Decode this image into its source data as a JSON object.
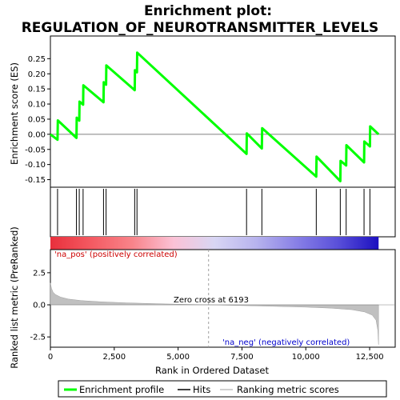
{
  "chart_data": {
    "type": "line",
    "title_line1": "Enrichment plot:",
    "title_line2": "REGULATION_OF_NEUROTRANSMITTER_LEVELS",
    "es_panel": {
      "ylabel": "Enrichment score (ES)",
      "ylim": [
        -0.175,
        0.325
      ],
      "yticks": [
        -0.15,
        -0.1,
        -0.05,
        0.0,
        0.05,
        0.1,
        0.15,
        0.2,
        0.25
      ],
      "ytick_labels": [
        "-0.15",
        "-0.10",
        "-0.05",
        "0.00",
        "0.05",
        "0.10",
        "0.15",
        "0.20",
        "0.25"
      ],
      "line_color": "#00ff00",
      "points": [
        {
          "x": 0,
          "y": 0.0
        },
        {
          "x": 280,
          "y": -0.018
        },
        {
          "x": 290,
          "y": 0.046
        },
        {
          "x": 1020,
          "y": -0.012
        },
        {
          "x": 1030,
          "y": 0.055
        },
        {
          "x": 1130,
          "y": 0.045
        },
        {
          "x": 1140,
          "y": 0.108
        },
        {
          "x": 1280,
          "y": 0.098
        },
        {
          "x": 1290,
          "y": 0.162
        },
        {
          "x": 2080,
          "y": 0.106
        },
        {
          "x": 2090,
          "y": 0.172
        },
        {
          "x": 2180,
          "y": 0.164
        },
        {
          "x": 2190,
          "y": 0.228
        },
        {
          "x": 3300,
          "y": 0.146
        },
        {
          "x": 3310,
          "y": 0.212
        },
        {
          "x": 3390,
          "y": 0.205
        },
        {
          "x": 3400,
          "y": 0.27
        },
        {
          "x": 7680,
          "y": -0.065
        },
        {
          "x": 7690,
          "y": 0.003
        },
        {
          "x": 8280,
          "y": -0.047
        },
        {
          "x": 8290,
          "y": 0.02
        },
        {
          "x": 10410,
          "y": -0.14
        },
        {
          "x": 10420,
          "y": -0.074
        },
        {
          "x": 11350,
          "y": -0.155
        },
        {
          "x": 11360,
          "y": -0.088
        },
        {
          "x": 11580,
          "y": -0.103
        },
        {
          "x": 11590,
          "y": -0.036
        },
        {
          "x": 12280,
          "y": -0.093
        },
        {
          "x": 12290,
          "y": -0.024
        },
        {
          "x": 12510,
          "y": -0.04
        },
        {
          "x": 12520,
          "y": 0.026
        },
        {
          "x": 12850,
          "y": 0.0
        }
      ]
    },
    "hits": [
      280,
      1020,
      1130,
      1280,
      2080,
      2180,
      3300,
      3390,
      7680,
      8280,
      10410,
      11350,
      11580,
      12280,
      12510
    ],
    "rank_panel": {
      "ylabel": "Ranked list metric (PreRanked)",
      "ylim": [
        -3.3,
        4.3
      ],
      "yticks": [
        -2.5,
        0.0,
        2.5
      ],
      "ytick_labels": [
        "-2.5",
        "0.0",
        "2.5"
      ],
      "zero_cross_label": "Zero cross at 6193",
      "zero_cross": 6193,
      "pos_label": "'na_pos' (positively correlated)",
      "neg_label": "'na_neg' (negatively correlated)",
      "pos_color": "#cc0000",
      "neg_color": "#0000cc",
      "curve": [
        {
          "x": 0,
          "y": 1.7
        },
        {
          "x": 40,
          "y": 1.3
        },
        {
          "x": 100,
          "y": 1.0
        },
        {
          "x": 200,
          "y": 0.8
        },
        {
          "x": 400,
          "y": 0.6
        },
        {
          "x": 700,
          "y": 0.45
        },
        {
          "x": 1200,
          "y": 0.33
        },
        {
          "x": 2000,
          "y": 0.23
        },
        {
          "x": 3000,
          "y": 0.15
        },
        {
          "x": 4500,
          "y": 0.07
        },
        {
          "x": 6193,
          "y": 0.0
        },
        {
          "x": 8000,
          "y": -0.08
        },
        {
          "x": 10000,
          "y": -0.18
        },
        {
          "x": 11000,
          "y": -0.26
        },
        {
          "x": 11800,
          "y": -0.38
        },
        {
          "x": 12300,
          "y": -0.55
        },
        {
          "x": 12600,
          "y": -0.8
        },
        {
          "x": 12750,
          "y": -1.2
        },
        {
          "x": 12820,
          "y": -2.0
        },
        {
          "x": 12850,
          "y": -3.1
        }
      ]
    },
    "colorbar_stops": [
      "#e8303c",
      "#f45a62",
      "#f8848a",
      "#fbc2d6",
      "#d8d6f4",
      "#b8b4ee",
      "#8880e6",
      "#5a50da",
      "#1c10c0"
    ],
    "xaxis": {
      "label": "Rank in Ordered Dataset",
      "xlim": [
        0,
        13500
      ],
      "ticks": [
        0,
        2500,
        5000,
        7500,
        10000,
        12500
      ],
      "tick_labels": [
        "0",
        "2,500",
        "5,000",
        "7,500",
        "10,000",
        "12,500"
      ]
    },
    "legend": {
      "items": [
        {
          "label": "Enrichment profile",
          "color": "#00ff00"
        },
        {
          "label": "Hits",
          "color": "#000000"
        },
        {
          "label": "Ranking metric scores",
          "color": "#c0c0c0"
        }
      ]
    }
  }
}
